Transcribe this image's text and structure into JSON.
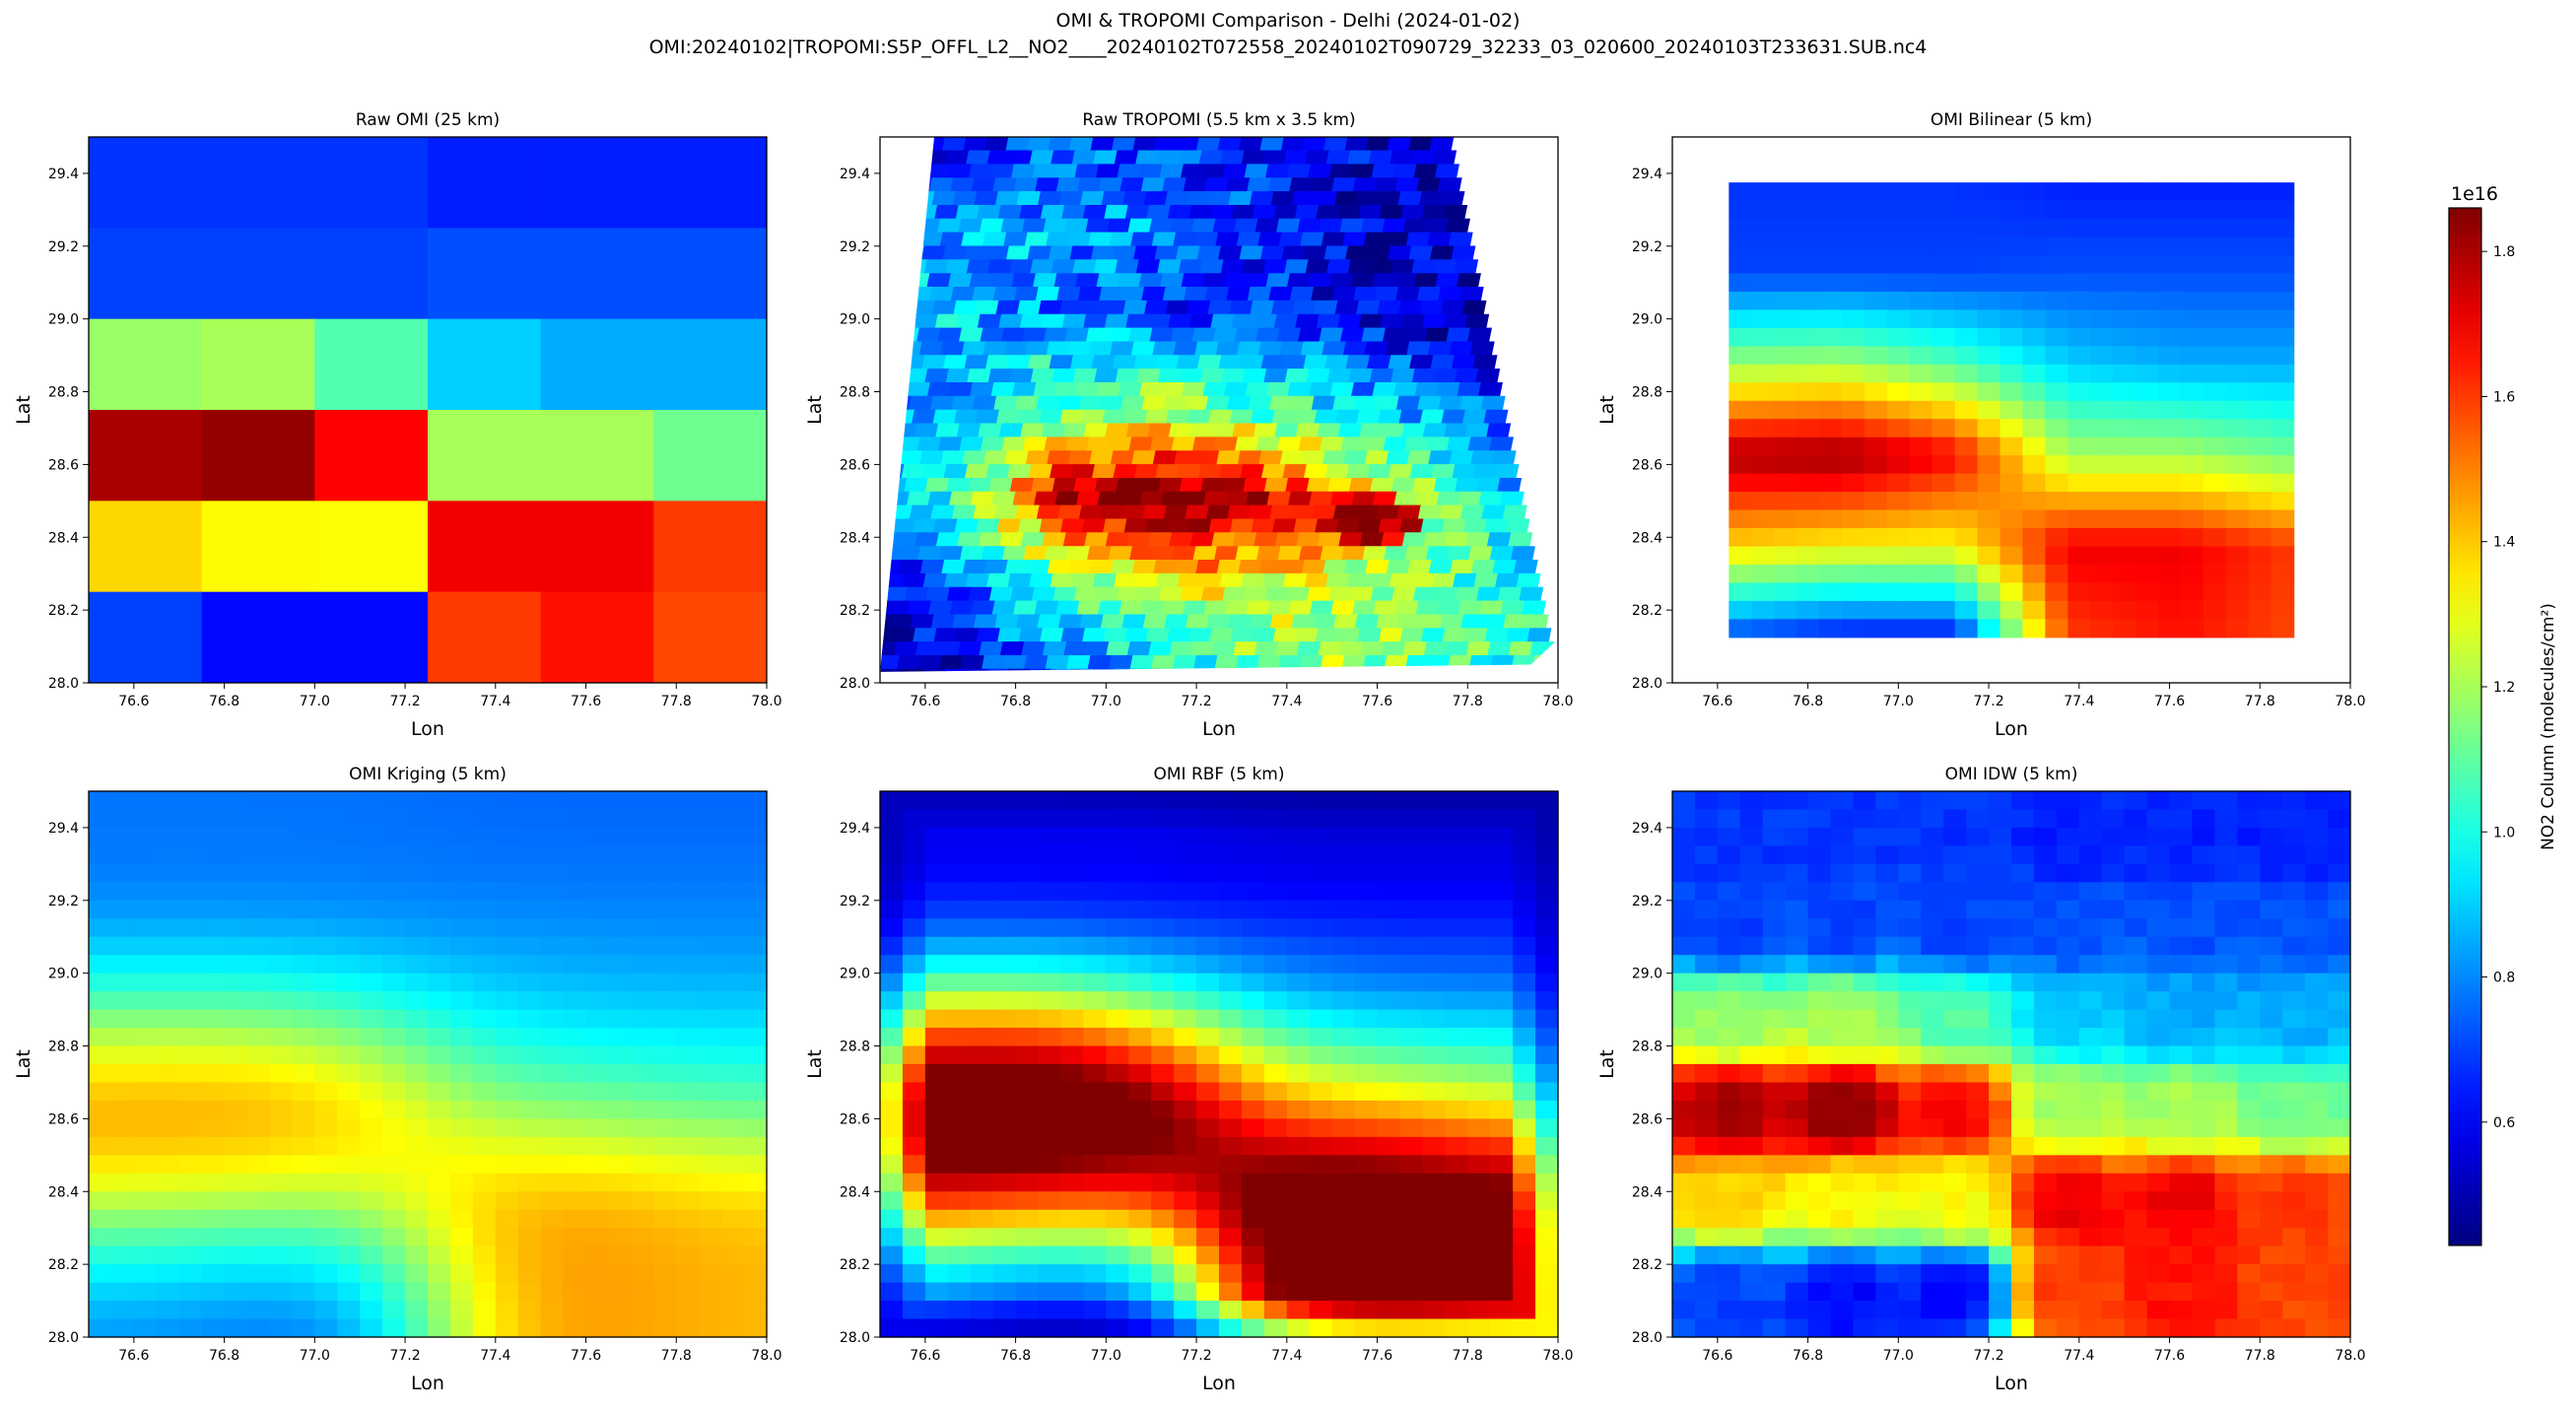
{
  "figure": {
    "title_line1": "OMI & TROPOMI Comparison - Delhi (2024-01-02)",
    "title_line2": "OMI:20240102|TROPOMI:S5P_OFFL_L2__NO2____20240102T072558_20240102T090729_32233_03_020600_20240103T233631.SUB.nc4"
  },
  "colorbar": {
    "label": "NO2 Column (molecules/cm²)",
    "exponent": "1e16",
    "min": 0.43,
    "max": 1.86,
    "ticks": [
      "0.6",
      "0.8",
      "1.0",
      "1.2",
      "1.4",
      "1.6",
      "1.8"
    ],
    "tick_values": [
      0.6,
      0.8,
      1.0,
      1.2,
      1.4,
      1.6,
      1.8
    ],
    "colormap": "jet"
  },
  "axes_common": {
    "xlabel": "Lon",
    "ylabel": "Lat",
    "xlim": [
      76.5,
      78.0
    ],
    "ylim": [
      28.0,
      29.5
    ],
    "xticks": [
      "76.6",
      "76.8",
      "77.0",
      "77.2",
      "77.4",
      "77.6",
      "77.8",
      "78.0"
    ],
    "xtick_values": [
      76.6,
      76.8,
      77.0,
      77.2,
      77.4,
      77.6,
      77.8,
      78.0
    ],
    "yticks": [
      "28.0",
      "28.2",
      "28.4",
      "28.6",
      "28.8",
      "29.0",
      "29.2",
      "29.4"
    ],
    "ytick_values": [
      28.0,
      28.2,
      28.4,
      28.6,
      28.8,
      29.0,
      29.2,
      29.4
    ]
  },
  "chart_data": [
    {
      "type": "heatmap",
      "title": "Raw OMI (25 km)",
      "units": "1e16 molecules/cm²",
      "x_edges": [
        76.5,
        76.75,
        77.0,
        77.25,
        77.5,
        77.75,
        78.0
      ],
      "y_edges": [
        29.5,
        29.25,
        29.0,
        28.75,
        28.5,
        28.25,
        28.0
      ],
      "values": [
        [
          0.68,
          0.68,
          0.68,
          0.65,
          0.65,
          0.65
        ],
        [
          0.7,
          0.7,
          0.7,
          0.72,
          0.72,
          0.72
        ],
        [
          1.18,
          1.2,
          1.08,
          0.9,
          0.85,
          0.85
        ],
        [
          1.8,
          1.83,
          1.68,
          1.2,
          1.2,
          1.12
        ],
        [
          1.38,
          1.33,
          1.32,
          1.7,
          1.7,
          1.6
        ],
        [
          0.7,
          0.62,
          0.62,
          1.6,
          1.66,
          1.58
        ]
      ]
    },
    {
      "type": "heatmap",
      "title": "Raw TROPOMI (5.5 km x 3.5 km)",
      "units": "1e16 molecules/cm²",
      "background": [
        [
          0.55,
          0.6,
          0.65,
          0.72,
          0.65,
          0.6,
          0.55
        ],
        [
          0.75,
          0.8,
          0.85,
          0.8,
          0.7,
          0.55,
          0.5
        ],
        [
          0.95,
          0.9,
          0.8,
          0.7,
          0.65,
          0.55,
          0.5
        ],
        [
          0.9,
          0.75,
          1.1,
          1.25,
          1.05,
          0.9,
          0.7
        ],
        [
          0.7,
          1.05,
          1.86,
          1.86,
          1.7,
          1.3,
          0.9
        ],
        [
          0.55,
          0.8,
          1.1,
          1.3,
          1.2,
          1.1,
          1.0
        ],
        [
          0.5,
          0.6,
          0.8,
          1.0,
          1.2,
          1.1,
          1.0
        ]
      ],
      "hotspots": [
        {
          "lon": 77.2,
          "lat": 28.52,
          "peak": 1.86
        },
        {
          "lon": 77.65,
          "lat": 28.45,
          "peak": 1.86
        }
      ]
    },
    {
      "type": "heatmap",
      "title": "OMI Bilinear (5 km)",
      "units": "1e16 molecules/cm²",
      "method": "bilinear",
      "extent": [
        76.625,
        77.875,
        28.125,
        29.375
      ]
    },
    {
      "type": "heatmap",
      "title": "OMI Kriging (5 km)",
      "units": "1e16 molecules/cm²",
      "method": "kriging"
    },
    {
      "type": "heatmap",
      "title": "OMI RBF (5 km)",
      "units": "1e16 molecules/cm²",
      "method": "rbf"
    },
    {
      "type": "heatmap",
      "title": "OMI IDW (5 km)",
      "units": "1e16 molecules/cm²",
      "method": "idw"
    }
  ]
}
